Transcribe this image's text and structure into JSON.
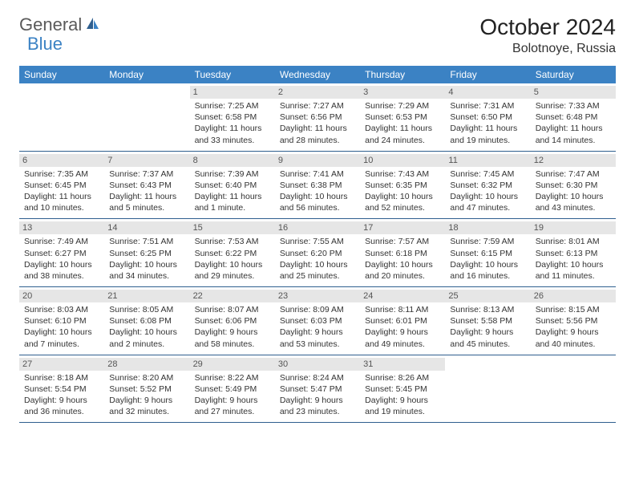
{
  "logo": {
    "textGeneral": "General",
    "textBlue": "Blue"
  },
  "title": "October 2024",
  "location": "Bolotnoye, Russia",
  "colors": {
    "headerBar": "#3b82c4",
    "dayNumBg": "#e6e6e6",
    "weekBorder": "#2f5f8f"
  },
  "daysOfWeek": [
    "Sunday",
    "Monday",
    "Tuesday",
    "Wednesday",
    "Thursday",
    "Friday",
    "Saturday"
  ],
  "weeks": [
    [
      {
        "n": "",
        "sunrise": "",
        "sunset": "",
        "daylight": ""
      },
      {
        "n": "",
        "sunrise": "",
        "sunset": "",
        "daylight": ""
      },
      {
        "n": "1",
        "sunrise": "Sunrise: 7:25 AM",
        "sunset": "Sunset: 6:58 PM",
        "daylight": "Daylight: 11 hours and 33 minutes."
      },
      {
        "n": "2",
        "sunrise": "Sunrise: 7:27 AM",
        "sunset": "Sunset: 6:56 PM",
        "daylight": "Daylight: 11 hours and 28 minutes."
      },
      {
        "n": "3",
        "sunrise": "Sunrise: 7:29 AM",
        "sunset": "Sunset: 6:53 PM",
        "daylight": "Daylight: 11 hours and 24 minutes."
      },
      {
        "n": "4",
        "sunrise": "Sunrise: 7:31 AM",
        "sunset": "Sunset: 6:50 PM",
        "daylight": "Daylight: 11 hours and 19 minutes."
      },
      {
        "n": "5",
        "sunrise": "Sunrise: 7:33 AM",
        "sunset": "Sunset: 6:48 PM",
        "daylight": "Daylight: 11 hours and 14 minutes."
      }
    ],
    [
      {
        "n": "6",
        "sunrise": "Sunrise: 7:35 AM",
        "sunset": "Sunset: 6:45 PM",
        "daylight": "Daylight: 11 hours and 10 minutes."
      },
      {
        "n": "7",
        "sunrise": "Sunrise: 7:37 AM",
        "sunset": "Sunset: 6:43 PM",
        "daylight": "Daylight: 11 hours and 5 minutes."
      },
      {
        "n": "8",
        "sunrise": "Sunrise: 7:39 AM",
        "sunset": "Sunset: 6:40 PM",
        "daylight": "Daylight: 11 hours and 1 minute."
      },
      {
        "n": "9",
        "sunrise": "Sunrise: 7:41 AM",
        "sunset": "Sunset: 6:38 PM",
        "daylight": "Daylight: 10 hours and 56 minutes."
      },
      {
        "n": "10",
        "sunrise": "Sunrise: 7:43 AM",
        "sunset": "Sunset: 6:35 PM",
        "daylight": "Daylight: 10 hours and 52 minutes."
      },
      {
        "n": "11",
        "sunrise": "Sunrise: 7:45 AM",
        "sunset": "Sunset: 6:32 PM",
        "daylight": "Daylight: 10 hours and 47 minutes."
      },
      {
        "n": "12",
        "sunrise": "Sunrise: 7:47 AM",
        "sunset": "Sunset: 6:30 PM",
        "daylight": "Daylight: 10 hours and 43 minutes."
      }
    ],
    [
      {
        "n": "13",
        "sunrise": "Sunrise: 7:49 AM",
        "sunset": "Sunset: 6:27 PM",
        "daylight": "Daylight: 10 hours and 38 minutes."
      },
      {
        "n": "14",
        "sunrise": "Sunrise: 7:51 AM",
        "sunset": "Sunset: 6:25 PM",
        "daylight": "Daylight: 10 hours and 34 minutes."
      },
      {
        "n": "15",
        "sunrise": "Sunrise: 7:53 AM",
        "sunset": "Sunset: 6:22 PM",
        "daylight": "Daylight: 10 hours and 29 minutes."
      },
      {
        "n": "16",
        "sunrise": "Sunrise: 7:55 AM",
        "sunset": "Sunset: 6:20 PM",
        "daylight": "Daylight: 10 hours and 25 minutes."
      },
      {
        "n": "17",
        "sunrise": "Sunrise: 7:57 AM",
        "sunset": "Sunset: 6:18 PM",
        "daylight": "Daylight: 10 hours and 20 minutes."
      },
      {
        "n": "18",
        "sunrise": "Sunrise: 7:59 AM",
        "sunset": "Sunset: 6:15 PM",
        "daylight": "Daylight: 10 hours and 16 minutes."
      },
      {
        "n": "19",
        "sunrise": "Sunrise: 8:01 AM",
        "sunset": "Sunset: 6:13 PM",
        "daylight": "Daylight: 10 hours and 11 minutes."
      }
    ],
    [
      {
        "n": "20",
        "sunrise": "Sunrise: 8:03 AM",
        "sunset": "Sunset: 6:10 PM",
        "daylight": "Daylight: 10 hours and 7 minutes."
      },
      {
        "n": "21",
        "sunrise": "Sunrise: 8:05 AM",
        "sunset": "Sunset: 6:08 PM",
        "daylight": "Daylight: 10 hours and 2 minutes."
      },
      {
        "n": "22",
        "sunrise": "Sunrise: 8:07 AM",
        "sunset": "Sunset: 6:06 PM",
        "daylight": "Daylight: 9 hours and 58 minutes."
      },
      {
        "n": "23",
        "sunrise": "Sunrise: 8:09 AM",
        "sunset": "Sunset: 6:03 PM",
        "daylight": "Daylight: 9 hours and 53 minutes."
      },
      {
        "n": "24",
        "sunrise": "Sunrise: 8:11 AM",
        "sunset": "Sunset: 6:01 PM",
        "daylight": "Daylight: 9 hours and 49 minutes."
      },
      {
        "n": "25",
        "sunrise": "Sunrise: 8:13 AM",
        "sunset": "Sunset: 5:58 PM",
        "daylight": "Daylight: 9 hours and 45 minutes."
      },
      {
        "n": "26",
        "sunrise": "Sunrise: 8:15 AM",
        "sunset": "Sunset: 5:56 PM",
        "daylight": "Daylight: 9 hours and 40 minutes."
      }
    ],
    [
      {
        "n": "27",
        "sunrise": "Sunrise: 8:18 AM",
        "sunset": "Sunset: 5:54 PM",
        "daylight": "Daylight: 9 hours and 36 minutes."
      },
      {
        "n": "28",
        "sunrise": "Sunrise: 8:20 AM",
        "sunset": "Sunset: 5:52 PM",
        "daylight": "Daylight: 9 hours and 32 minutes."
      },
      {
        "n": "29",
        "sunrise": "Sunrise: 8:22 AM",
        "sunset": "Sunset: 5:49 PM",
        "daylight": "Daylight: 9 hours and 27 minutes."
      },
      {
        "n": "30",
        "sunrise": "Sunrise: 8:24 AM",
        "sunset": "Sunset: 5:47 PM",
        "daylight": "Daylight: 9 hours and 23 minutes."
      },
      {
        "n": "31",
        "sunrise": "Sunrise: 8:26 AM",
        "sunset": "Sunset: 5:45 PM",
        "daylight": "Daylight: 9 hours and 19 minutes."
      },
      {
        "n": "",
        "sunrise": "",
        "sunset": "",
        "daylight": ""
      },
      {
        "n": "",
        "sunrise": "",
        "sunset": "",
        "daylight": ""
      }
    ]
  ]
}
